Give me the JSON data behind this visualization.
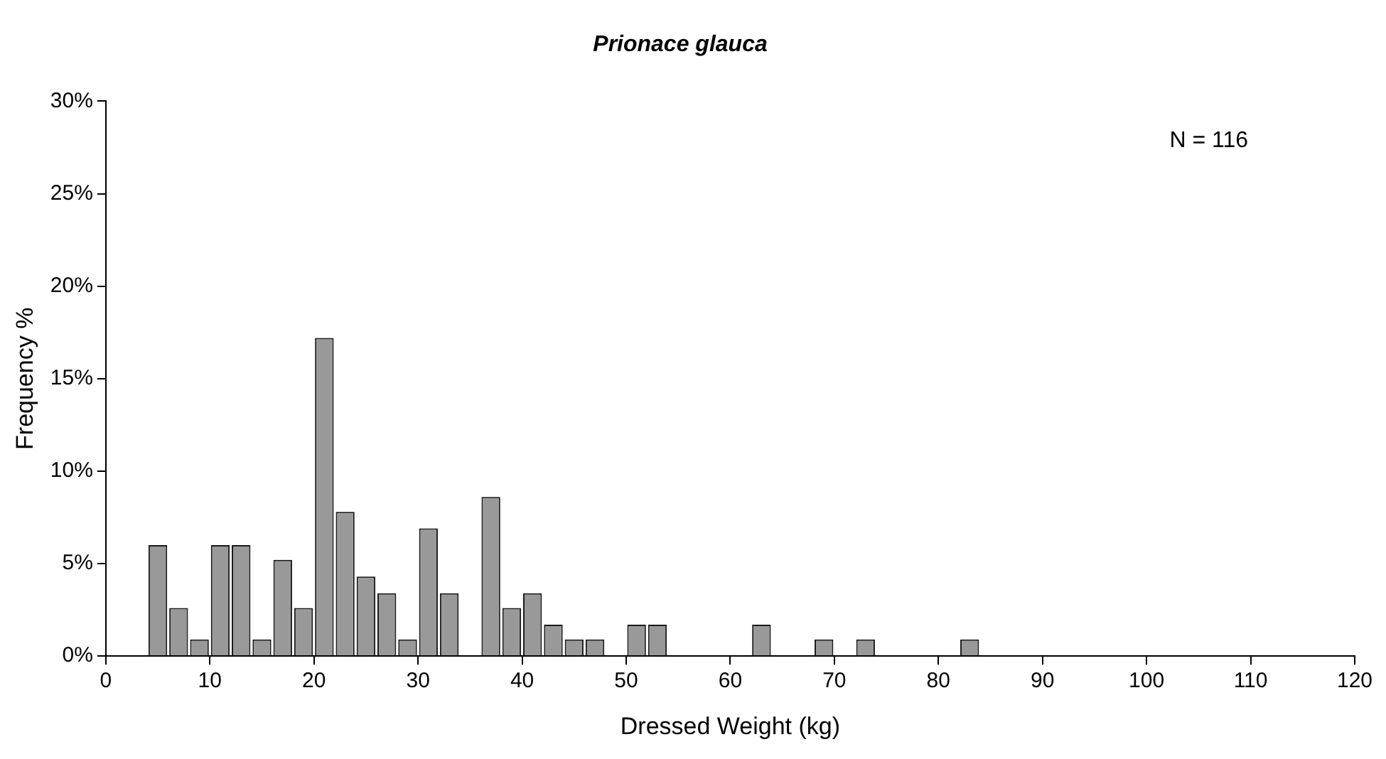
{
  "chart_data": {
    "type": "histogram",
    "title": "Prionace glauca",
    "xlabel": "Dressed Weight (kg)",
    "ylabel": "Frequency %",
    "annotations": [
      "N = 116"
    ],
    "bins": [
      4,
      6,
      8,
      10,
      12,
      14,
      16,
      18,
      20,
      22,
      24,
      26,
      28,
      30,
      32,
      34,
      36,
      38,
      40,
      42,
      44,
      46,
      48,
      50,
      52,
      54,
      56,
      58,
      60,
      62,
      64,
      66,
      68,
      70,
      72,
      74,
      76,
      78,
      80,
      82,
      84
    ],
    "values": [
      6.0,
      2.6,
      0.9,
      6.0,
      6.0,
      0.9,
      5.2,
      2.6,
      17.2,
      7.8,
      4.3,
      3.4,
      0.9,
      6.9,
      3.4,
      0,
      8.6,
      2.6,
      3.4,
      1.7,
      0.9,
      0.9,
      0,
      1.7,
      1.7,
      0,
      0,
      0,
      0,
      1.7,
      0,
      0,
      0.9,
      0,
      0.9,
      0,
      0,
      0,
      0,
      0.9
    ],
    "color": "#999999",
    "xlim": [
      0,
      120
    ],
    "xticks": [
      0,
      10,
      20,
      30,
      40,
      50,
      60,
      70,
      80,
      90,
      100,
      110,
      120
    ],
    "ylim": [
      0,
      30
    ],
    "yticks": [
      {
        "value": 0,
        "label": "0%"
      },
      {
        "value": 5,
        "label": "5%"
      },
      {
        "value": 10,
        "label": "10%"
      },
      {
        "value": 15,
        "label": "15%"
      },
      {
        "value": 20,
        "label": "20%"
      },
      {
        "value": 25,
        "label": "25%"
      },
      {
        "value": 30,
        "label": "30%"
      }
    ],
    "grid": false,
    "legend": false
  }
}
